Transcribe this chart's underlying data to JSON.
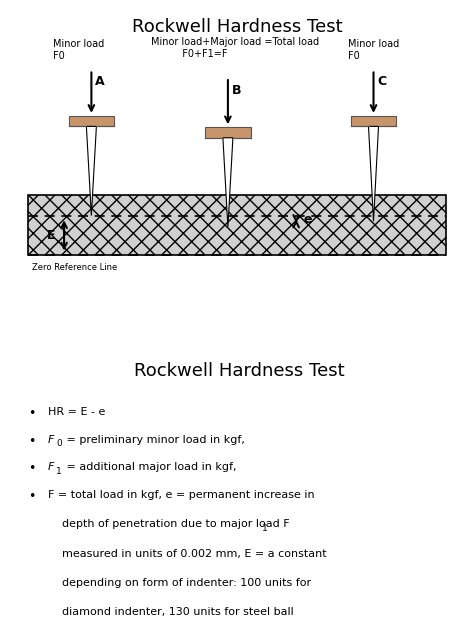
{
  "title1": "Rockwell Hardness Test",
  "title2": "Rockwell Hardness Test",
  "indenter_face_color": "#c8956a",
  "bg_color": "#ffffff",
  "material_fill": "#d0d0d0",
  "text_color": "#000000",
  "minor_load_A": "Minor load\nF0",
  "minor_load_C": "Minor load\nF0",
  "major_load_text": "Minor load+Major load =Total load\n          F0+F1=F",
  "zero_ref_text": "Zero Reference Line",
  "label_A": "A",
  "label_B": "B",
  "label_C": "C",
  "label_E": "E",
  "label_e": "e",
  "font_size_title": 13,
  "font_size_small": 7,
  "font_size_bullet": 8
}
